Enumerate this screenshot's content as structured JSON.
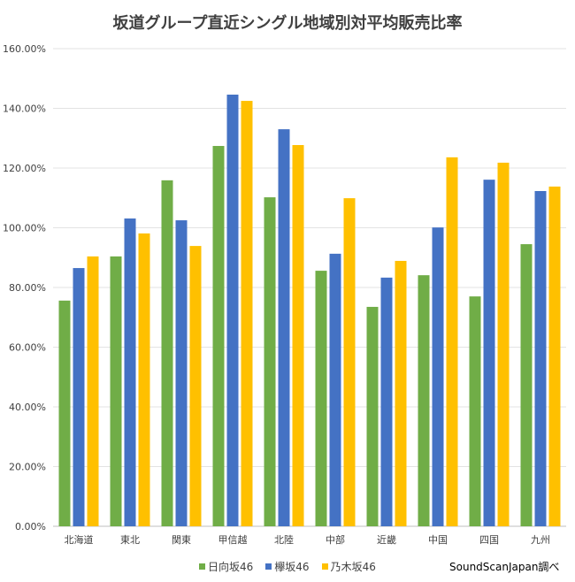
{
  "chart_data": {
    "type": "bar",
    "title": "坂道グループ直近シングル地域別対平均販売比率",
    "categories": [
      "北海道",
      "東北",
      "関東",
      "甲信越",
      "北陸",
      "中部",
      "近畿",
      "中国",
      "四国",
      "九州"
    ],
    "series": [
      {
        "name": "日向坂46",
        "color": "#70ad47",
        "values": [
          75.6,
          90.4,
          115.9,
          127.4,
          110.2,
          85.6,
          73.5,
          84.1,
          77.0,
          94.5
        ]
      },
      {
        "name": "欅坂46",
        "color": "#4472c4",
        "values": [
          86.5,
          103.1,
          102.5,
          144.6,
          133.0,
          91.3,
          83.3,
          100.1,
          116.1,
          112.3
        ]
      },
      {
        "name": "乃木坂46",
        "color": "#ffc000",
        "values": [
          90.4,
          98.1,
          93.9,
          142.5,
          127.7,
          109.9,
          88.9,
          123.6,
          121.8,
          113.8
        ]
      }
    ],
    "ylim": [
      0,
      160
    ],
    "yticks": [
      "0.00%",
      "20.00%",
      "40.00%",
      "60.00%",
      "80.00%",
      "100.00%",
      "120.00%",
      "140.00%",
      "160.00%"
    ],
    "grid": true,
    "legend": "bottom",
    "source": "SoundScanJapan調べ"
  }
}
